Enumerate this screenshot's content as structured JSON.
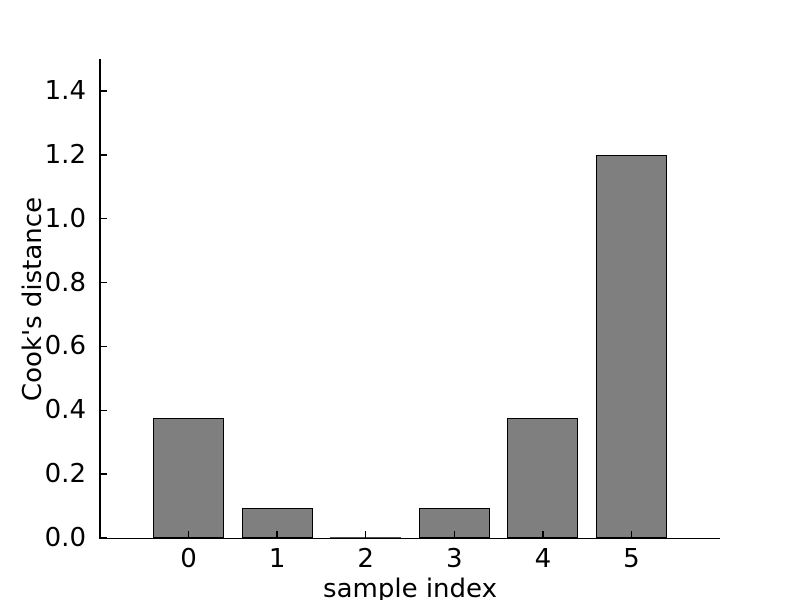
{
  "figure": {
    "background": "#ffffff"
  },
  "chart_data": {
    "type": "bar",
    "title": "",
    "xlabel": "sample index",
    "ylabel": "Cook's distance",
    "categories": [
      "0",
      "1",
      "2",
      "3",
      "4",
      "5"
    ],
    "values": [
      0.375,
      0.094,
      0.0,
      0.094,
      0.375,
      1.2
    ],
    "xlim": [
      -1,
      6
    ],
    "ylim": [
      0,
      1.5
    ],
    "yticks": [
      0.0,
      0.2,
      0.4,
      0.6,
      0.8,
      1.0,
      1.2,
      1.4
    ],
    "ytick_labels": [
      "0.0",
      "0.2",
      "0.4",
      "0.6",
      "0.8",
      "1.0",
      "1.2",
      "1.4"
    ],
    "bar_width_units": 0.8,
    "bar_color": "#7f7f7f",
    "bar_edge_color": "#000000",
    "zero_bar_line_color": "#4d4d4d",
    "axis_color": "#000000",
    "text_color": "#000000",
    "grid": false,
    "legend": null,
    "tick_direction": "in"
  }
}
